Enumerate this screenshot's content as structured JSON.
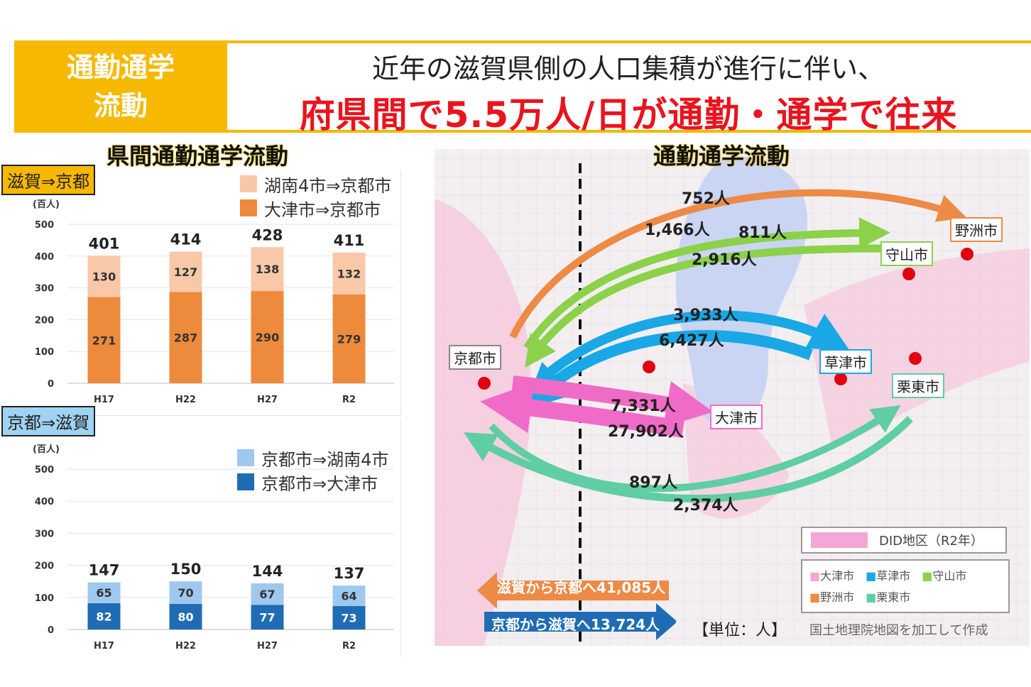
{
  "header": {
    "badge": "通勤通学\n流動",
    "line1": "近年の滋賀県側の人口集積が進行に伴い、",
    "line2": "府県間で5.5万人/日が通勤・通学で往来"
  },
  "left_title": "県間通勤通学流動",
  "map_title": "通勤通学流動",
  "colors": {
    "accent": "#f6b800",
    "red": "#e8141e",
    "light_orange": "#f8c8a8",
    "orange": "#ee8a3c",
    "light_blue": "#9fc8ee",
    "dark_blue": "#1f6cb5",
    "flow_orange": "#ed8a45",
    "flow_green": "#8bd14a",
    "flow_blue": "#19a7e6",
    "flow_pink": "#f06bc7",
    "flow_teal": "#5fcea2"
  },
  "chart_data": [
    {
      "type": "bar",
      "tag": "滋賀⇒京都",
      "unit": "(百人)",
      "categories": [
        "H17",
        "H22",
        "H27",
        "R2"
      ],
      "ylim": [
        0,
        500
      ],
      "yticks": [
        "0",
        "100",
        "200",
        "300",
        "400",
        "500"
      ],
      "stacked": true,
      "totals": [
        401,
        414,
        428,
        411
      ],
      "series": [
        {
          "name": "大津市⇒京都市",
          "values": [
            271,
            287,
            290,
            279
          ],
          "color": "#ee8a3c"
        },
        {
          "name": "湖南4市⇒京都市",
          "values": [
            130,
            127,
            138,
            132
          ],
          "color": "#f8c8a8"
        }
      ]
    },
    {
      "type": "bar",
      "tag": "京都⇒滋賀",
      "unit": "(百人)",
      "categories": [
        "H17",
        "H22",
        "H27",
        "R2"
      ],
      "ylim": [
        0,
        500
      ],
      "yticks": [
        "0",
        "100",
        "200",
        "300",
        "400",
        "500"
      ],
      "stacked": true,
      "totals": [
        147,
        150,
        144,
        137
      ],
      "series": [
        {
          "name": "京都市⇒大津市",
          "values": [
            82,
            80,
            77,
            73
          ],
          "color": "#1f6cb5"
        },
        {
          "name": "京都市⇒湖南4市",
          "values": [
            65,
            70,
            67,
            64
          ],
          "color": "#9fc8ee"
        }
      ]
    }
  ],
  "map": {
    "cities": {
      "yasu": "野洲市",
      "moriyama": "守山市",
      "kyoto": "京都市",
      "kusatsu": "草津市",
      "ritto": "栗東市",
      "otsu": "大津市"
    },
    "flows": {
      "yasu_a": "752人",
      "moriyama_a": "1,466人",
      "moriyama_b": "811人",
      "moriyama_c": "2,916人",
      "kusatsu_a": "3,933人",
      "kusatsu_b": "6,427人",
      "otsu_a": "7,331人",
      "otsu_b": "27,902人",
      "ritto_a": "897人",
      "ritto_b": "2,374人"
    },
    "total_to_kyoto": "滋賀から京都へ41,085人",
    "total_to_shiga": "京都から滋賀へ13,724人",
    "unit": "【単位：人】",
    "source": "国土地理院地図を加工して作成",
    "did_label": "DID地区（R2年）",
    "legend": [
      "大津市",
      "草津市",
      "守山市",
      "野洲市",
      "栗東市"
    ]
  }
}
